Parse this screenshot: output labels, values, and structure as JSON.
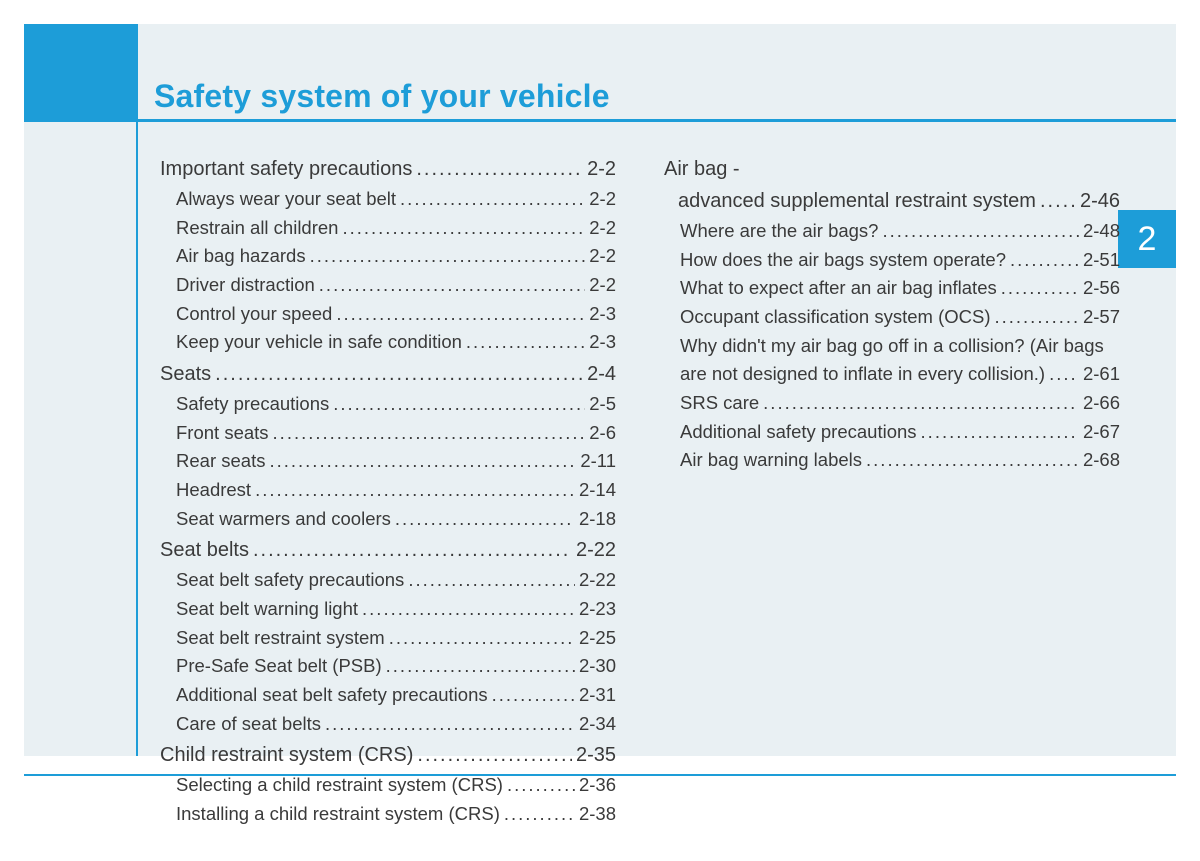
{
  "colors": {
    "brand": "#1d9dd8",
    "page_bg": "#e9f0f3",
    "text": "#3a3a3a",
    "tab_text": "#ffffff"
  },
  "chapter_tab": "2",
  "title": "Safety system of your vehicle",
  "toc": {
    "left": [
      {
        "type": "section",
        "label": "Important safety precautions",
        "page": "2-2"
      },
      {
        "type": "sub",
        "label": "Always wear your seat belt",
        "page": "2-2"
      },
      {
        "type": "sub",
        "label": "Restrain all children",
        "page": "2-2"
      },
      {
        "type": "sub",
        "label": "Air bag hazards",
        "page": "2-2"
      },
      {
        "type": "sub",
        "label": "Driver distraction",
        "page": "2-2"
      },
      {
        "type": "sub",
        "label": "Control your speed",
        "page": "2-3"
      },
      {
        "type": "sub",
        "label": "Keep your vehicle in safe condition",
        "page": "2-3"
      },
      {
        "type": "section",
        "label": "Seats",
        "page": "2-4"
      },
      {
        "type": "sub",
        "label": "Safety precautions",
        "page": "2-5"
      },
      {
        "type": "sub",
        "label": "Front seats",
        "page": "2-6"
      },
      {
        "type": "sub",
        "label": "Rear seats",
        "page": "2-11"
      },
      {
        "type": "sub",
        "label": "Headrest",
        "page": "2-14"
      },
      {
        "type": "sub",
        "label": "Seat warmers and coolers",
        "page": "2-18"
      },
      {
        "type": "section",
        "label": "Seat belts",
        "page": "2-22"
      },
      {
        "type": "sub",
        "label": "Seat belt safety precautions",
        "page": "2-22"
      },
      {
        "type": "sub",
        "label": "Seat belt warning light",
        "page": "2-23"
      },
      {
        "type": "sub",
        "label": "Seat belt restraint system",
        "page": "2-25"
      },
      {
        "type": "sub",
        "label": "Pre-Safe Seat belt (PSB)",
        "page": "2-30"
      },
      {
        "type": "sub",
        "label": "Additional seat belt safety precautions",
        "page": "2-31"
      },
      {
        "type": "sub",
        "label": "Care of seat belts",
        "page": "2-34"
      },
      {
        "type": "section",
        "label": "Child restraint system (CRS)",
        "page": "2-35"
      },
      {
        "type": "sub",
        "label": "Selecting a child restraint system (CRS)",
        "page": "2-36"
      },
      {
        "type": "sub",
        "label": "Installing a child restraint system (CRS)",
        "page": "2-38"
      }
    ],
    "right_heading_line1": "Air bag -",
    "right_heading_line2": "advanced supplemental restraint system",
    "right_heading_page": "2-46",
    "right": [
      {
        "type": "sub",
        "label": "Where are the air bags?",
        "page": "2-48"
      },
      {
        "type": "sub",
        "label": "How does the air bags system operate?",
        "page": "2-51"
      },
      {
        "type": "sub",
        "label": "What to expect after an air bag inflates",
        "page": "2-56"
      },
      {
        "type": "sub",
        "label": "Occupant classification system (OCS)",
        "page": "2-57"
      },
      {
        "type": "sub_wrap",
        "label": "Why didn't my air bag go off in a collision? (Air bags are not designed to inflate in every collision.)",
        "page": "2-61"
      },
      {
        "type": "sub",
        "label": "SRS care",
        "page": "2-66"
      },
      {
        "type": "sub",
        "label": "Additional safety precautions",
        "page": "2-67"
      },
      {
        "type": "sub",
        "label": "Air bag warning labels",
        "page": "2-68"
      }
    ]
  }
}
